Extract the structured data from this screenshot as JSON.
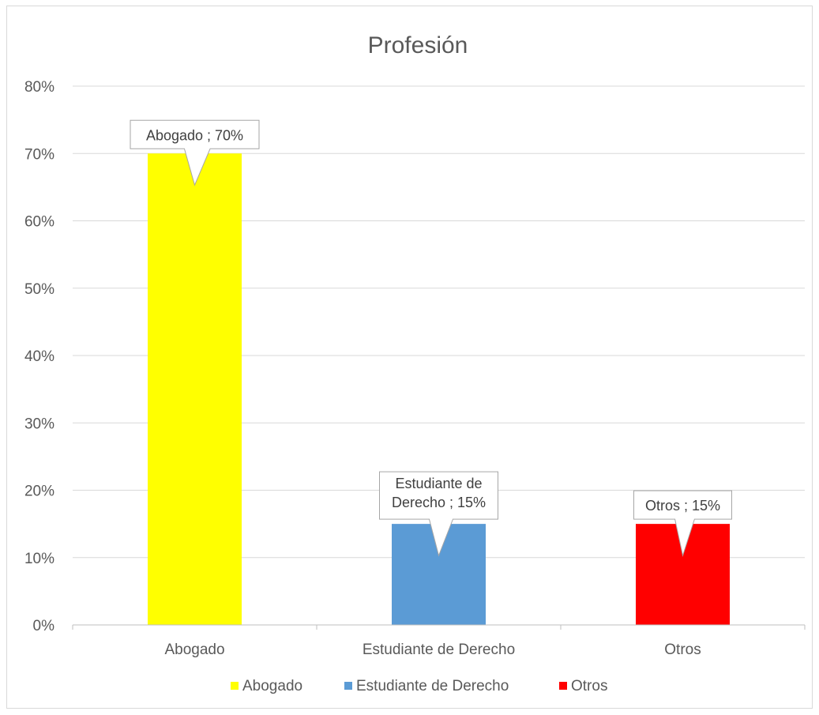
{
  "chart_data": {
    "type": "bar",
    "title": "Profesión",
    "xlabel": "",
    "ylabel": "",
    "categories": [
      "Abogado",
      "Estudiante de Derecho",
      "Otros"
    ],
    "values": [
      0.7,
      0.15,
      0.15
    ],
    "colors": [
      "#FFFF00",
      "#5B9BD5",
      "#FF0000"
    ],
    "ylim": [
      0,
      0.8
    ],
    "yticks": [
      "0%",
      "10%",
      "20%",
      "30%",
      "40%",
      "50%",
      "60%",
      "70%",
      "80%"
    ],
    "grid": true,
    "legend": {
      "placement": "bottom",
      "entries": [
        "Abogado",
        "Estudiante de Derecho",
        "Otros"
      ]
    },
    "data_labels": [
      [
        "Abogado ; 70%"
      ],
      [
        "Estudiante de",
        "Derecho ; 15%"
      ],
      [
        "Otros ; 15%"
      ]
    ]
  }
}
